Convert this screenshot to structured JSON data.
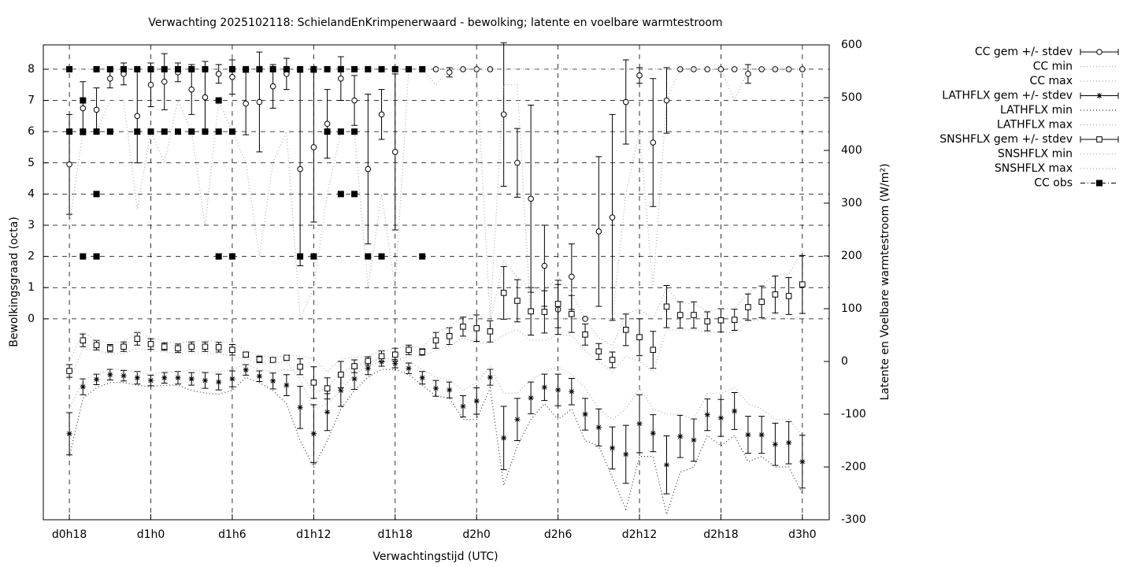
{
  "chart_data": {
    "type": "errorbar",
    "title": "Verwachting 2025102118: SchielandEnKrimpenerwaard - bewolking; latente en voelbare warmtestroom",
    "x_label": "Verwachtingstijd (UTC)",
    "y_label": "Bewolkingsgraad (octa)",
    "y2_label": "Latente en Voelbare warmtestroom (W/m²)",
    "xlim": [
      16.08,
      73.98
    ],
    "xticks": [
      {
        "value": 18,
        "label": "d0h18"
      },
      {
        "value": 24,
        "label": "d1h0"
      },
      {
        "value": 30,
        "label": "d1h6"
      },
      {
        "value": 36,
        "label": "d1h12"
      },
      {
        "value": 42,
        "label": "d1h18"
      },
      {
        "value": 48,
        "label": "d2h0"
      },
      {
        "value": 54,
        "label": "d2h6"
      },
      {
        "value": 60,
        "label": "d2h12"
      },
      {
        "value": 66,
        "label": "d2h18"
      },
      {
        "value": 72,
        "label": "d3h0"
      }
    ],
    "ylim": [
      -6.44,
      8.78
    ],
    "yticks": [
      0,
      1,
      2,
      3,
      4,
      5,
      6,
      7,
      8
    ],
    "y2lim": [
      -300,
      600
    ],
    "y2ticks": [
      -300,
      -200,
      -100,
      0,
      100,
      200,
      300,
      400,
      500,
      600
    ],
    "grid": true,
    "legend": "outside-right",
    "x": [
      18,
      19,
      20,
      21,
      22,
      23,
      24,
      25,
      26,
      27,
      28,
      29,
      30,
      31,
      32,
      33,
      34,
      35,
      36,
      37,
      38,
      39,
      40,
      41,
      42,
      43,
      44,
      45,
      46,
      47,
      48,
      49,
      50,
      51,
      52,
      53,
      54,
      55,
      56,
      57,
      58,
      59,
      60,
      61,
      62,
      63,
      64,
      65,
      66,
      67,
      68,
      69,
      70,
      71,
      72
    ],
    "series": [
      {
        "name": "CC gem +/- stdev",
        "style": "errorbar",
        "marker": "circle",
        "color": "#000000",
        "values": [
          4.95,
          6.75,
          6.7,
          7.7,
          7.85,
          6.5,
          7.5,
          7.6,
          7.9,
          7.35,
          7.1,
          7.85,
          7.75,
          6.9,
          6.95,
          7.45,
          7.85,
          4.8,
          5.5,
          6.25,
          7.7,
          7.0,
          4.8,
          6.55,
          5.35,
          8,
          8,
          8,
          7.9,
          8,
          8,
          8,
          6.55,
          5.0,
          3.85,
          1.7,
          0.3,
          1.35,
          0,
          2.8,
          3.25,
          6.95,
          7.8,
          5.65,
          7.0,
          8,
          8,
          8,
          8,
          8,
          7.85,
          8,
          8,
          8,
          8
        ],
        "errors": [
          1.6,
          0.85,
          0.7,
          0.3,
          0.35,
          1.5,
          0.7,
          0.9,
          0.3,
          0.8,
          1.15,
          0.3,
          0.55,
          1.0,
          1.6,
          0.7,
          0.5,
          3.1,
          2.4,
          1.1,
          0.7,
          0.8,
          2.4,
          0.8,
          2.5,
          0,
          0,
          0,
          0.15,
          0,
          0,
          0,
          2.3,
          1.1,
          3.0,
          1.3,
          0.8,
          1.05,
          0,
          2.4,
          3.3,
          1.35,
          0.25,
          2.05,
          1.05,
          0,
          0,
          0,
          0,
          0,
          0.3,
          0,
          0,
          0,
          0
        ]
      },
      {
        "name": "CC min",
        "style": "line",
        "color": "#aaaaaa",
        "values": [
          3,
          6,
          6,
          7,
          7,
          3.5,
          6,
          5,
          7,
          6,
          3,
          7,
          6,
          5,
          2,
          5,
          6,
          0,
          1,
          4,
          6,
          6,
          1,
          4,
          1,
          8,
          8,
          7.5,
          8,
          8,
          8,
          0,
          7.5,
          7.5,
          0,
          0,
          0,
          0,
          0,
          0,
          0,
          4,
          6,
          1,
          7,
          8,
          8,
          8,
          8,
          7,
          8,
          8,
          8,
          8,
          8
        ]
      },
      {
        "name": "CC max",
        "style": "line",
        "color": "#aaaaaa",
        "values": [
          8,
          8,
          8,
          8,
          8,
          8,
          8,
          8,
          8,
          8,
          8,
          8,
          8,
          8,
          8,
          8,
          8,
          8,
          8,
          8,
          8,
          8,
          8,
          8,
          8,
          8,
          8,
          8,
          8,
          8,
          8,
          8,
          8,
          8,
          8,
          8,
          8,
          8,
          8,
          8,
          8,
          8,
          8,
          8,
          8,
          8,
          8,
          8,
          8,
          8,
          8,
          8,
          8,
          8,
          8
        ]
      },
      {
        "name": "LATHFLX gem +/- stdev",
        "style": "errorbar",
        "marker": "star",
        "axis": "y2",
        "color": "#000000",
        "values": [
          -137,
          -48,
          -34,
          -25,
          -27,
          -31,
          -36,
          -31,
          -31,
          -33,
          -36,
          -39,
          -33,
          -16,
          -28,
          -37,
          -45,
          -87,
          -137,
          -96,
          -55,
          -33,
          -13,
          -1,
          -4,
          -13,
          -31,
          -51,
          -54,
          -85,
          -75,
          -30,
          -145,
          -110,
          -69,
          -49,
          -54,
          -57,
          -100,
          -125,
          -164,
          -176,
          -118,
          -136,
          -196,
          -142,
          -149,
          -101,
          -107,
          -94,
          -139,
          -139,
          -157,
          -154,
          -190
        ],
        "errors": [
          40,
          15,
          10,
          10,
          10,
          12,
          10,
          10,
          12,
          12,
          15,
          15,
          15,
          10,
          10,
          15,
          20,
          40,
          55,
          35,
          30,
          20,
          12,
          8,
          8,
          10,
          12,
          15,
          15,
          20,
          25,
          15,
          60,
          40,
          30,
          25,
          30,
          25,
          30,
          35,
          40,
          55,
          55,
          35,
          55,
          40,
          40,
          30,
          35,
          35,
          35,
          35,
          40,
          40,
          50
        ]
      },
      {
        "name": "LATHFLX min",
        "style": "line",
        "axis": "y2",
        "color": "#333333",
        "values": [
          -180,
          -70,
          -50,
          -40,
          -40,
          -45,
          -48,
          -45,
          -45,
          -55,
          -60,
          -62,
          -55,
          -30,
          -40,
          -55,
          -80,
          -150,
          -200,
          -150,
          -90,
          -55,
          -30,
          -15,
          -15,
          -25,
          -45,
          -65,
          -70,
          -110,
          -110,
          -50,
          -235,
          -160,
          -110,
          -80,
          -110,
          -90,
          -150,
          -160,
          -220,
          -280,
          -180,
          -180,
          -290,
          -210,
          -200,
          -140,
          -160,
          -140,
          -190,
          -180,
          -200,
          -200,
          -250
        ]
      },
      {
        "name": "LATHFLX max",
        "style": "line",
        "axis": "y2",
        "color": "#aaaaaa",
        "values": [
          -90,
          -35,
          -25,
          -15,
          -15,
          -20,
          -25,
          -20,
          -20,
          -15,
          -20,
          -20,
          -15,
          -5,
          -15,
          -20,
          -15,
          -20,
          -60,
          -50,
          -20,
          -10,
          0,
          5,
          5,
          0,
          -15,
          -30,
          -35,
          -55,
          -40,
          -10,
          -60,
          -60,
          -35,
          -20,
          -10,
          -25,
          -50,
          -90,
          -110,
          -90,
          -50,
          -90,
          -100,
          -100,
          -110,
          -60,
          -60,
          -50,
          -80,
          -90,
          -110,
          -110,
          -140
        ]
      },
      {
        "name": "SNSHFLX gem +/- stdev",
        "style": "errorbar",
        "marker": "square",
        "axis": "y2",
        "color": "#000000",
        "values": [
          -18,
          40,
          31,
          25,
          28,
          43,
          33,
          28,
          25,
          28,
          28,
          27,
          22,
          13,
          4,
          3,
          7,
          -10,
          -40,
          -51,
          -25,
          -9,
          1,
          10,
          13,
          22,
          18,
          40,
          48,
          66,
          63,
          57,
          130,
          115,
          95,
          94,
          109,
          90,
          51,
          19,
          3,
          60,
          46,
          22,
          104,
          88,
          88,
          76,
          78,
          79,
          103,
          113,
          127,
          124,
          146
        ],
        "errors": [
          12,
          12,
          9,
          7,
          9,
          12,
          10,
          7,
          8,
          9,
          9,
          9,
          10,
          5,
          6,
          4,
          5,
          15,
          30,
          20,
          25,
          12,
          8,
          10,
          12,
          9,
          6,
          15,
          16,
          18,
          25,
          20,
          50,
          40,
          45,
          40,
          45,
          35,
          20,
          15,
          15,
          30,
          35,
          35,
          40,
          25,
          25,
          18,
          22,
          20,
          25,
          30,
          35,
          35,
          55
        ]
      },
      {
        "name": "SNSHFLX min",
        "style": "line",
        "axis": "y2",
        "color": "#aaaaaa",
        "values": [
          -35,
          25,
          20,
          15,
          15,
          25,
          20,
          18,
          15,
          15,
          15,
          15,
          10,
          5,
          -5,
          -3,
          0,
          -35,
          -90,
          -80,
          -55,
          -25,
          -8,
          0,
          2,
          10,
          10,
          20,
          30,
          45,
          35,
          35,
          50,
          60,
          40,
          40,
          50,
          50,
          20,
          0,
          -20,
          10,
          0,
          -20,
          60,
          60,
          60,
          55,
          55,
          55,
          75,
          80,
          90,
          80,
          85
        ]
      },
      {
        "name": "SNSHFLX max",
        "style": "line",
        "axis": "y2",
        "color": "#aaaaaa",
        "values": [
          0,
          55,
          40,
          35,
          38,
          55,
          45,
          38,
          35,
          38,
          40,
          38,
          35,
          20,
          12,
          8,
          12,
          10,
          5,
          -20,
          5,
          8,
          10,
          20,
          25,
          30,
          25,
          55,
          65,
          85,
          90,
          75,
          190,
          160,
          140,
          135,
          160,
          130,
          80,
          45,
          30,
          90,
          100,
          80,
          140,
          110,
          110,
          95,
          100,
          100,
          130,
          145,
          165,
          165,
          210
        ]
      },
      {
        "name": "CC obs",
        "style": "points",
        "marker": "filled-square",
        "color": "#000000",
        "x": [
          18,
          18,
          19,
          19,
          19,
          20,
          20,
          20,
          20,
          21,
          21,
          22,
          23,
          23,
          24,
          24,
          25,
          25,
          26,
          26,
          27,
          27,
          28,
          28,
          29,
          29,
          29,
          30,
          30,
          30,
          31,
          32,
          33,
          34,
          35,
          35,
          36,
          36,
          37,
          37,
          38,
          38,
          38,
          39,
          39,
          39,
          40,
          40,
          41,
          41,
          42,
          43,
          44,
          44
        ],
        "values": [
          8,
          6,
          7,
          6,
          2,
          8,
          6,
          4,
          2,
          8,
          6,
          8,
          8,
          6,
          8,
          6,
          8,
          6,
          8,
          6,
          8,
          6,
          8,
          6,
          7,
          6,
          2,
          8,
          6,
          2,
          8,
          8,
          8,
          8,
          8,
          2,
          8,
          2,
          8,
          6,
          8,
          6,
          4,
          8,
          6,
          4,
          8,
          2,
          8,
          2,
          8,
          8,
          8,
          2
        ]
      }
    ]
  }
}
